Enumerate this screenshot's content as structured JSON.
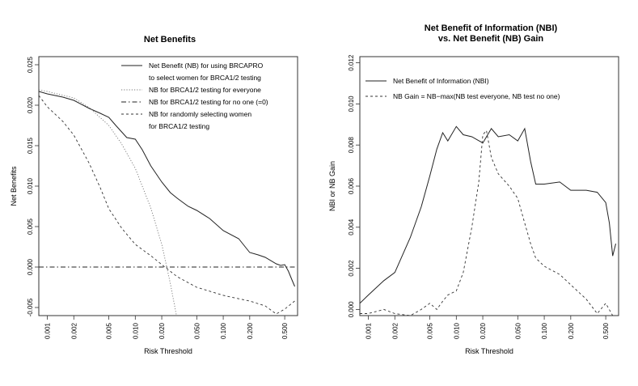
{
  "chart_data": [
    {
      "type": "line",
      "title": "Net Benefits",
      "xlabel": "Risk Threshold",
      "ylabel": "Net Benefits",
      "x_scale": "log",
      "xlim": [
        0.0008,
        0.7
      ],
      "ylim": [
        -0.006,
        0.026
      ],
      "x_ticks": [
        "0.001",
        "0.002",
        "0.005",
        "0.010",
        "0.020",
        "0.050",
        "0.100",
        "0.200",
        "0.500"
      ],
      "x_tick_values": [
        0.001,
        0.002,
        0.005,
        0.01,
        0.02,
        0.05,
        0.1,
        0.2,
        0.5
      ],
      "y_ticks": [
        "-0.005",
        "0.000",
        "0.005",
        "0.010",
        "0.015",
        "0.020",
        "0.025"
      ],
      "y_tick_values": [
        -0.005,
        0.0,
        0.005,
        0.01,
        0.015,
        0.02,
        0.025
      ],
      "legend_position": "top-right",
      "series": [
        {
          "name": "Net Benefit (NB) for using BRCAPRO\nto select women for BRCA1/2 testing",
          "style": "solid",
          "x": [
            0.0008,
            0.001,
            0.0015,
            0.002,
            0.003,
            0.004,
            0.005,
            0.006,
            0.008,
            0.01,
            0.012,
            0.015,
            0.02,
            0.025,
            0.03,
            0.04,
            0.05,
            0.07,
            0.1,
            0.15,
            0.2,
            0.25,
            0.3,
            0.4,
            0.45,
            0.5,
            0.55,
            0.6,
            0.65
          ],
          "y": [
            0.0217,
            0.0214,
            0.021,
            0.0206,
            0.0196,
            0.019,
            0.0185,
            0.0175,
            0.016,
            0.0158,
            0.0145,
            0.0125,
            0.0105,
            0.0092,
            0.0085,
            0.0075,
            0.007,
            0.006,
            0.0045,
            0.0035,
            0.0018,
            0.0015,
            0.0012,
            0.0004,
            0.0002,
            0.0003,
            -0.0005,
            -0.0015,
            -0.0024
          ]
        },
        {
          "name": "NB for BRCA1/2 testing for everyone",
          "style": "dotted",
          "x": [
            0.0008,
            0.001,
            0.002,
            0.003,
            0.005,
            0.007,
            0.01,
            0.015,
            0.02,
            0.025,
            0.03
          ],
          "y": [
            0.0219,
            0.0217,
            0.0209,
            0.0197,
            0.0175,
            0.0152,
            0.0122,
            0.0073,
            0.0028,
            -0.002,
            -0.0065
          ]
        },
        {
          "name": "NB for BRCA1/2 testing for no one (=0)",
          "style": "dashdot",
          "x": [
            0.0008,
            0.65
          ],
          "y": [
            0.0,
            0.0
          ]
        },
        {
          "name": "NB for randomly selecting women\nfor BRCA1/2 testing",
          "style": "dashed",
          "x": [
            0.0008,
            0.001,
            0.0015,
            0.002,
            0.003,
            0.004,
            0.005,
            0.007,
            0.01,
            0.015,
            0.02,
            0.03,
            0.05,
            0.1,
            0.2,
            0.3,
            0.4,
            0.5,
            0.6,
            0.65
          ],
          "y": [
            0.0212,
            0.0198,
            0.018,
            0.0163,
            0.0128,
            0.0098,
            0.0072,
            0.0048,
            0.0028,
            0.0014,
            0.0003,
            -0.0012,
            -0.0025,
            -0.0035,
            -0.0042,
            -0.0048,
            -0.0058,
            -0.0052,
            -0.0045,
            -0.0042
          ]
        }
      ]
    },
    {
      "type": "line",
      "title": "Net Benefit of Information (NBI)\nvs. Net Benefit (NB) Gain",
      "xlabel": "Risk Threshold",
      "ylabel": "NBI or NB Gain",
      "x_scale": "log",
      "xlim": [
        0.0008,
        0.7
      ],
      "ylim": [
        -0.0003,
        0.0123
      ],
      "x_ticks": [
        "0.001",
        "0.002",
        "0.005",
        "0.010",
        "0.020",
        "0.050",
        "0.100",
        "0.200",
        "0.500"
      ],
      "x_tick_values": [
        0.001,
        0.002,
        0.005,
        0.01,
        0.02,
        0.05,
        0.1,
        0.2,
        0.5
      ],
      "y_ticks": [
        "0.000",
        "0.002",
        "0.004",
        "0.006",
        "0.008",
        "0.010",
        "0.012"
      ],
      "y_tick_values": [
        0.0,
        0.002,
        0.004,
        0.006,
        0.008,
        0.01,
        0.012
      ],
      "legend_position": "top-right",
      "series": [
        {
          "name": "Net Benefit of Information (NBI)",
          "style": "solid",
          "x": [
            0.0008,
            0.001,
            0.0015,
            0.002,
            0.003,
            0.004,
            0.005,
            0.006,
            0.007,
            0.008,
            0.01,
            0.012,
            0.015,
            0.02,
            0.025,
            0.03,
            0.04,
            0.05,
            0.06,
            0.07,
            0.08,
            0.1,
            0.15,
            0.2,
            0.3,
            0.4,
            0.5,
            0.55,
            0.6,
            0.65
          ],
          "y": [
            0.0003,
            0.0007,
            0.0014,
            0.0018,
            0.0035,
            0.005,
            0.0065,
            0.0078,
            0.0086,
            0.0082,
            0.0089,
            0.0085,
            0.0084,
            0.0081,
            0.0088,
            0.0084,
            0.0085,
            0.0082,
            0.0088,
            0.0072,
            0.0061,
            0.0061,
            0.0062,
            0.0058,
            0.0058,
            0.0057,
            0.0052,
            0.0042,
            0.0026,
            0.0032
          ]
        },
        {
          "name": "NB Gain = NB−max(NB test everyone, NB test no one)",
          "style": "dashed",
          "x": [
            0.0008,
            0.001,
            0.0015,
            0.002,
            0.003,
            0.004,
            0.005,
            0.006,
            0.007,
            0.008,
            0.01,
            0.012,
            0.015,
            0.018,
            0.02,
            0.022,
            0.025,
            0.03,
            0.04,
            0.05,
            0.06,
            0.07,
            0.08,
            0.1,
            0.15,
            0.2,
            0.3,
            0.4,
            0.5,
            0.6
          ],
          "y": [
            -0.0002,
            -0.0002,
            0.0,
            -0.0002,
            -0.0003,
            0.0,
            0.0003,
            0.0,
            0.0004,
            0.0007,
            0.0009,
            0.0018,
            0.004,
            0.0062,
            0.0085,
            0.0087,
            0.0074,
            0.0066,
            0.006,
            0.0054,
            0.0042,
            0.0032,
            0.0025,
            0.0021,
            0.0017,
            0.0012,
            0.0005,
            -0.0002,
            0.0003,
            -0.0003
          ]
        }
      ]
    }
  ]
}
